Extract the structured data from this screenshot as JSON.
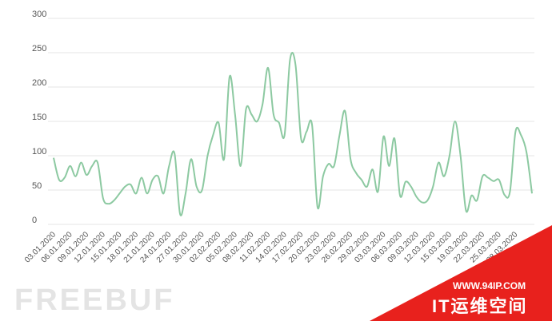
{
  "chart_data": {
    "type": "line",
    "categories": [
      "03.01.2020",
      null,
      null,
      "06.01.2020",
      null,
      null,
      "09.01.2020",
      null,
      null,
      "12.01.2020",
      null,
      null,
      "15.01.2020",
      null,
      null,
      "18.01.2020",
      null,
      null,
      "21.01.2020",
      null,
      null,
      "24.01.2020",
      null,
      null,
      "27.01.2020",
      null,
      null,
      "30.01.2020",
      null,
      null,
      "02.02.2020",
      null,
      null,
      "05.02.2020",
      null,
      null,
      "08.02.2020",
      null,
      null,
      "11.02.2020",
      null,
      null,
      "14.02.2020",
      null,
      null,
      "17.02.2020",
      null,
      null,
      "20.02.2020",
      null,
      null,
      "23.02.2020",
      null,
      null,
      "26.02.2020",
      null,
      null,
      "29.02.2020",
      null,
      null,
      "03.03.2020",
      null,
      null,
      "06.03.2020",
      null,
      null,
      "09.03.2020",
      null,
      null,
      "12.03.2020",
      null,
      null,
      "15.03.2020",
      null,
      null,
      "19.03.2020",
      null,
      null,
      "22.03.2020",
      null,
      null,
      "25.03.2020",
      null,
      null,
      "28.03.2020",
      null,
      null,
      null
    ],
    "values": [
      97,
      65,
      68,
      85,
      70,
      90,
      72,
      85,
      90,
      38,
      30,
      35,
      45,
      55,
      58,
      45,
      68,
      45,
      65,
      70,
      45,
      85,
      103,
      15,
      45,
      95,
      55,
      50,
      100,
      130,
      148,
      95,
      215,
      160,
      85,
      168,
      160,
      150,
      175,
      228,
      160,
      148,
      130,
      240,
      232,
      125,
      135,
      145,
      25,
      70,
      88,
      85,
      130,
      165,
      95,
      75,
      65,
      55,
      80,
      48,
      128,
      85,
      125,
      42,
      62,
      55,
      40,
      32,
      35,
      55,
      90,
      70,
      100,
      150,
      100,
      20,
      42,
      35,
      70,
      68,
      63,
      65,
      43,
      48,
      135,
      130,
      105,
      45
    ],
    "color": "#8cc9a1",
    "ylim": [
      0,
      300
    ],
    "yticks": [
      0,
      50,
      100,
      150,
      200,
      250,
      300
    ],
    "grid": true
  },
  "watermarks": [
    "FREEBUF",
    "WWW.94IP.COM",
    "IT运维空间"
  ]
}
